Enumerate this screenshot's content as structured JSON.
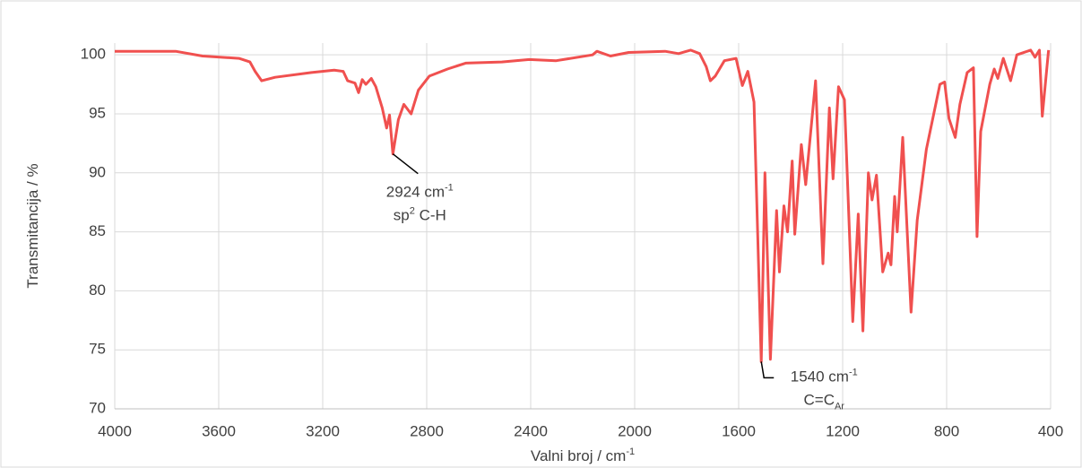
{
  "chart_data": {
    "type": "line",
    "xlabel": [
      {
        "text": "Valni broj / cm"
      },
      {
        "text": "-1",
        "script": "super"
      }
    ],
    "ylabel": [
      {
        "text": "Transmitancija / %"
      }
    ],
    "xlim": [
      4000,
      400
    ],
    "ylim": [
      70,
      101
    ],
    "xticks": [
      4000,
      3600,
      3200,
      2800,
      2400,
      2000,
      1600,
      1200,
      800,
      400
    ],
    "yticks": [
      70,
      75,
      80,
      85,
      90,
      95,
      100
    ],
    "grid": true,
    "x": [
      4000,
      3766,
      3662,
      3522,
      3480,
      3460,
      3435,
      3383,
      3243,
      3156,
      3121,
      3104,
      3076,
      3062,
      3048,
      3034,
      3013,
      2996,
      2971,
      2954,
      2943,
      2930,
      2909,
      2888,
      2860,
      2832,
      2790,
      2720,
      2650,
      2511,
      2406,
      2302,
      2162,
      2145,
      2093,
      2023,
      1883,
      1831,
      1785,
      1750,
      1725,
      1709,
      1690,
      1655,
      1610,
      1586,
      1565,
      1541,
      1513,
      1499,
      1478,
      1454,
      1443,
      1426,
      1412,
      1394,
      1384,
      1359,
      1342,
      1304,
      1276,
      1251,
      1237,
      1216,
      1193,
      1161,
      1140,
      1122,
      1101,
      1087,
      1070,
      1046,
      1025,
      1014,
      1000,
      990,
      969,
      937,
      913,
      878,
      826,
      808,
      791,
      767,
      749,
      721,
      697,
      683,
      669,
      634,
      617,
      603,
      582,
      554,
      530,
      477,
      460,
      443,
      432,
      408
    ],
    "series": [
      {
        "color": "#f0504f",
        "values": [
          100.3,
          100.3,
          99.9,
          99.7,
          99.4,
          98.6,
          97.8,
          98.1,
          98.5,
          98.7,
          98.6,
          97.8,
          97.6,
          96.8,
          97.9,
          97.5,
          98.0,
          97.3,
          95.5,
          93.8,
          94.9,
          91.6,
          94.5,
          95.8,
          95.0,
          97.0,
          98.2,
          98.8,
          99.3,
          99.4,
          99.6,
          99.5,
          100.0,
          100.3,
          99.9,
          100.2,
          100.3,
          100.1,
          100.4,
          100.1,
          99.0,
          97.8,
          98.2,
          99.5,
          99.7,
          97.4,
          98.6,
          96.0,
          74.0,
          90.0,
          74.2,
          86.8,
          81.6,
          87.2,
          85.0,
          91.0,
          84.8,
          92.4,
          89.0,
          97.8,
          82.3,
          95.5,
          89.5,
          97.3,
          96.2,
          77.4,
          86.5,
          76.6,
          90.0,
          87.7,
          89.8,
          81.6,
          83.2,
          82.2,
          88.0,
          85.0,
          93.0,
          78.2,
          86.0,
          92.0,
          97.5,
          97.7,
          94.6,
          93.0,
          95.8,
          98.5,
          98.9,
          84.6,
          93.5,
          97.5,
          98.8,
          98.0,
          99.7,
          97.8,
          100.0,
          100.4,
          99.8,
          100.4,
          94.8,
          100.4
        ]
      }
    ],
    "annotations": [
      {
        "x": 2930,
        "y": 91.6,
        "lines": [
          [
            {
              "text": "2924 cm"
            },
            {
              "text": "-1",
              "script": "super"
            }
          ],
          [
            {
              "text": "sp"
            },
            {
              "text": "2",
              "script": "super"
            },
            {
              "text": " C-H"
            }
          ]
        ]
      },
      {
        "x": 1513,
        "y": 74.0,
        "lines": [
          [
            {
              "text": "1540 cm"
            },
            {
              "text": "-1",
              "script": "super"
            }
          ],
          [
            {
              "text": "C=C"
            },
            {
              "text": "Ar",
              "script": "sub"
            }
          ]
        ]
      }
    ]
  }
}
